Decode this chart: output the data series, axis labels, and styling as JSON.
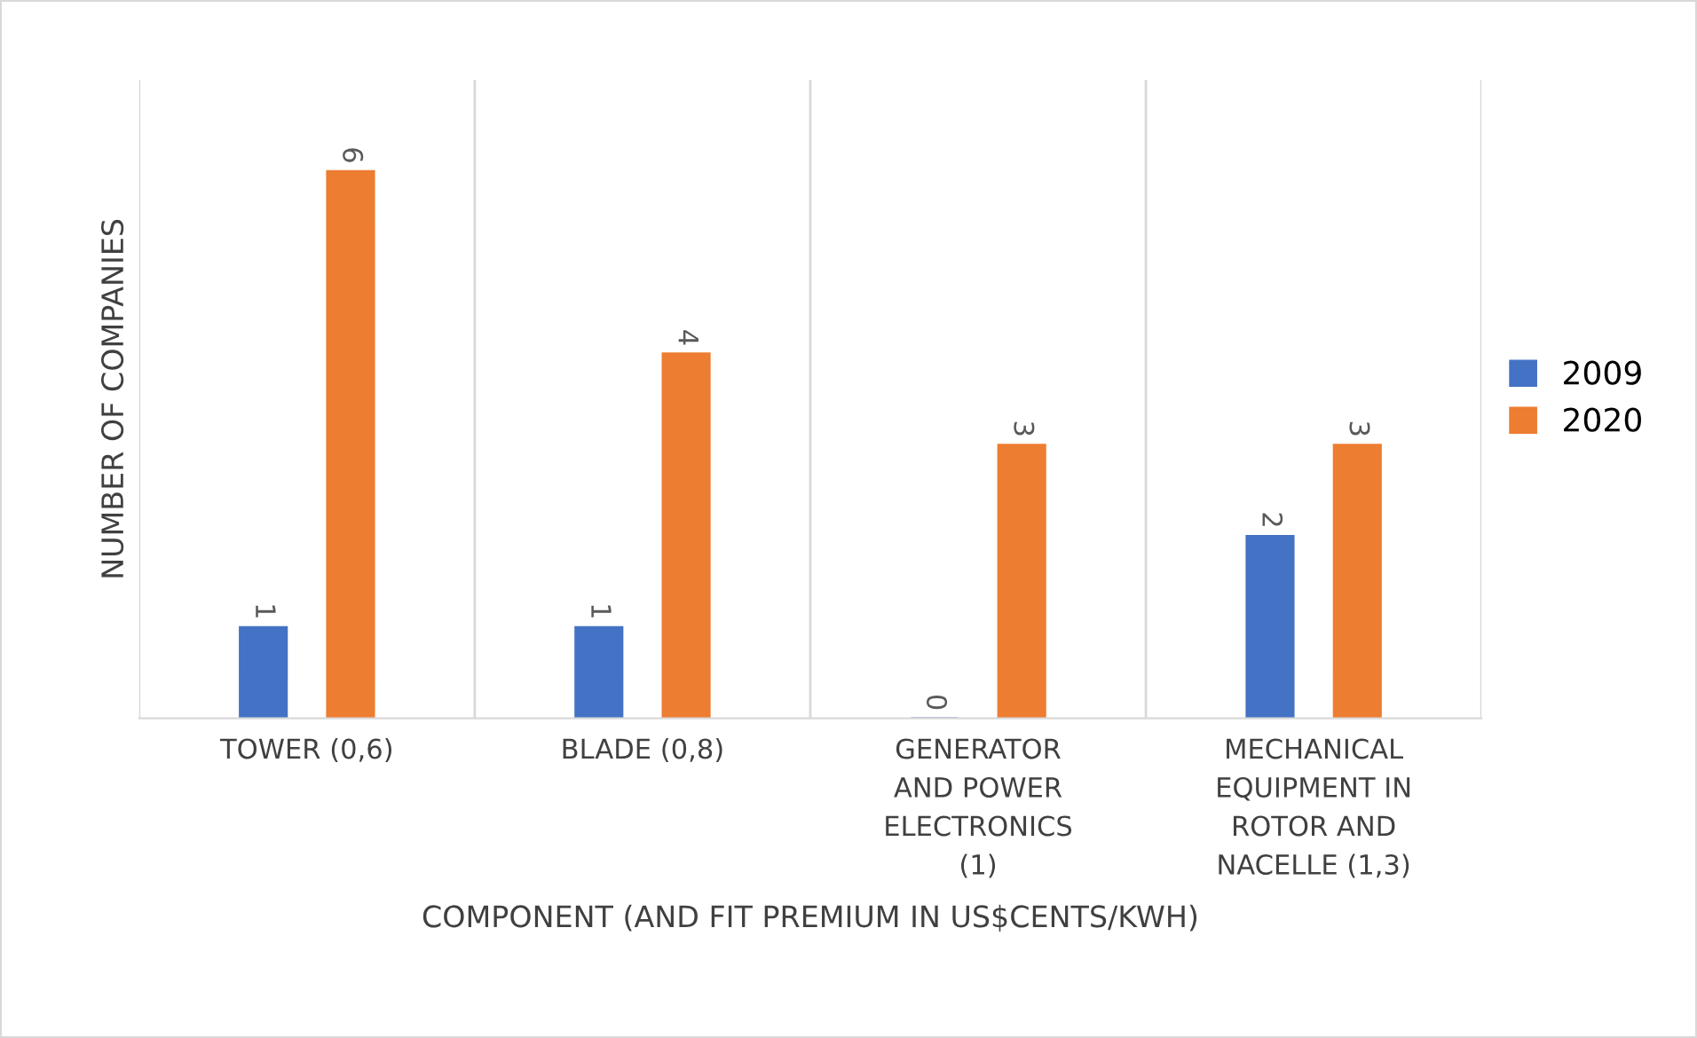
{
  "chart_data": {
    "type": "bar",
    "xlabel": "COMPONENT (AND FIT PREMIUM IN US$CENTS/KWH)",
    "ylabel": "NUMBER OF COMPANIES",
    "categories": [
      "TOWER (0,6)",
      "BLADE (0,8)",
      "GENERATOR\nAND POWER\nELECTRONICS\n(1)",
      "MECHANICAL\nEQUIPMENT IN\nROTOR AND\nNACELLE (1,3)"
    ],
    "series": [
      {
        "name": "2009",
        "color": "#4472c4",
        "values": [
          1,
          1,
          0,
          2
        ]
      },
      {
        "name": "2020",
        "color": "#ed7d31",
        "values": [
          6,
          4,
          3,
          3
        ]
      }
    ],
    "data_labels": true,
    "grid": "x",
    "legend": "right",
    "tick_labels": "x"
  }
}
